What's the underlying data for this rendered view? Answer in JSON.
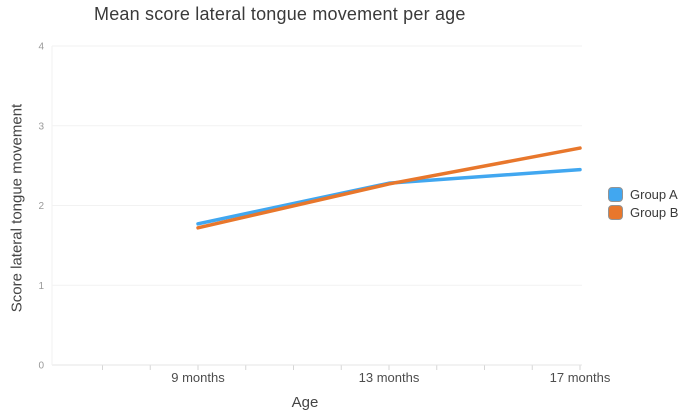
{
  "chart_data": {
    "type": "line",
    "title": "Mean score lateral tongue movement per age",
    "xlabel": "Age",
    "ylabel": "Score lateral tongue movement",
    "categories": [
      "9 months",
      "13 months",
      "17 months"
    ],
    "x_values_months": [
      9,
      13,
      17
    ],
    "x_minor_ticks_months": [
      7,
      8,
      9,
      10,
      11,
      12,
      13,
      14,
      15,
      16,
      17
    ],
    "ylim": [
      0,
      4
    ],
    "yticks": [
      0,
      1,
      2,
      3,
      4
    ],
    "grid": true,
    "legend_position": "right-center",
    "series": [
      {
        "name": "Group A",
        "color": "#41a7f0",
        "values": [
          1.77,
          2.28,
          2.45
        ]
      },
      {
        "name": "Group B",
        "color": "#e8772c",
        "values": [
          1.72,
          2.27,
          2.72
        ]
      }
    ]
  },
  "style_colors": {
    "gridline": "#f2f2f2",
    "axis_line": "#e4e4e4",
    "tick_mark": "#d6d6d6",
    "legend_swatch_border": "#949494"
  }
}
